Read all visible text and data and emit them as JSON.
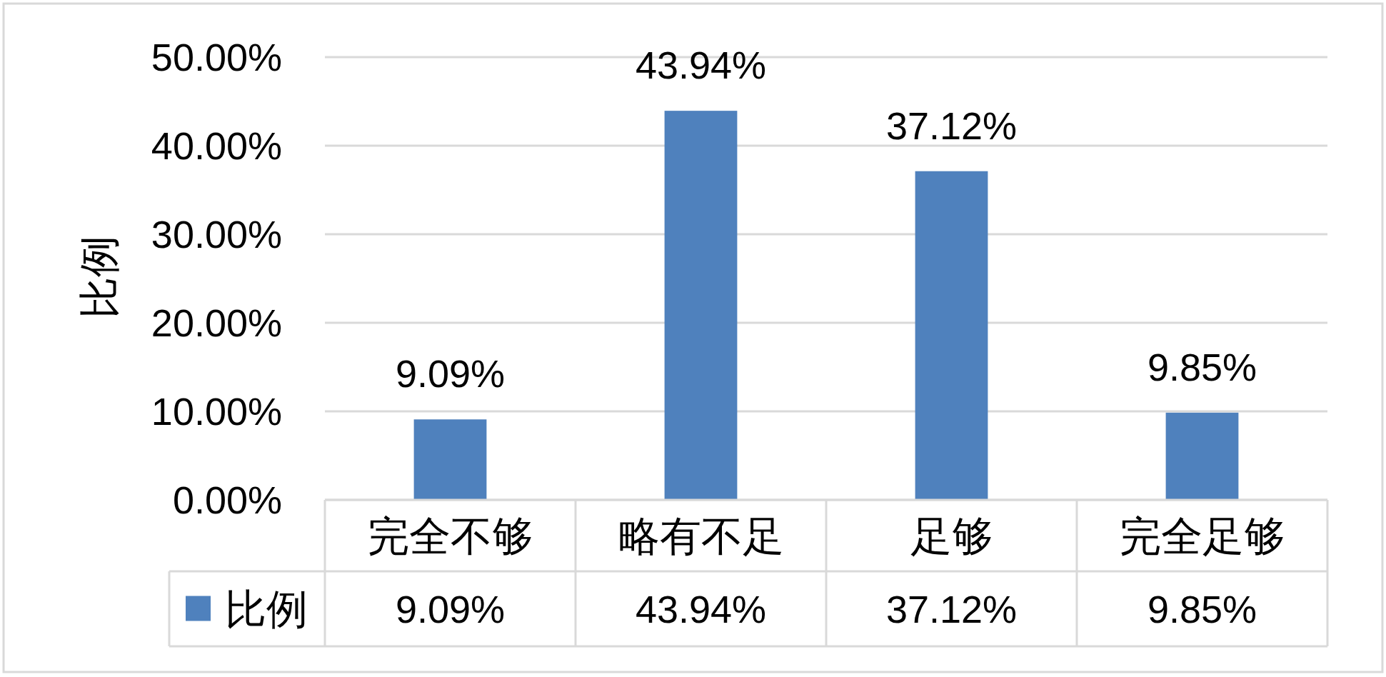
{
  "chart_data": {
    "type": "bar",
    "ylabel": "比例",
    "categories": [
      "完全不够",
      "略有不足",
      "足够",
      "完全足够"
    ],
    "series": [
      {
        "name": "比例",
        "color": "#4f81bd",
        "values": [
          9.09,
          43.94,
          37.12,
          9.85
        ],
        "value_labels": [
          "9.09%",
          "43.94%",
          "37.12%",
          "9.85%"
        ]
      }
    ],
    "ylim": [
      0,
      50
    ],
    "yticks": [
      {
        "value": 0,
        "label": "0.00%"
      },
      {
        "value": 10,
        "label": "10.00%"
      },
      {
        "value": 20,
        "label": "20.00%"
      },
      {
        "value": 30,
        "label": "30.00%"
      },
      {
        "value": 40,
        "label": "40.00%"
      },
      {
        "value": 50,
        "label": "50.00%"
      }
    ],
    "grid": "y",
    "legend": "bottom"
  }
}
